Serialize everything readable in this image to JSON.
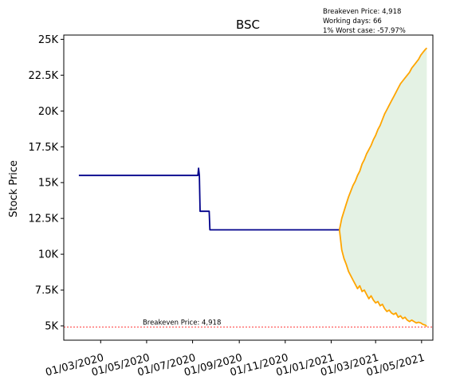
{
  "chart_data": {
    "type": "line",
    "title": "BSC",
    "ylabel": "Stock Price",
    "xlabel": "",
    "ylim": [
      4000,
      25300
    ],
    "xlim": [
      "2020-01-12",
      "2021-05-16"
    ],
    "grid": false,
    "colors": {
      "history": "#00008b",
      "forecast": "#ffa500",
      "fill": "#e4f2e4",
      "breakeven": "#ff0000"
    },
    "y_ticks": [
      {
        "value": 5000,
        "label": "5K"
      },
      {
        "value": 7500,
        "label": "7.5K"
      },
      {
        "value": 10000,
        "label": "10K"
      },
      {
        "value": 12500,
        "label": "12.5K"
      },
      {
        "value": 15000,
        "label": "15K"
      },
      {
        "value": 17500,
        "label": "17.5K"
      },
      {
        "value": 20000,
        "label": "20K"
      },
      {
        "value": 22500,
        "label": "22.5K"
      },
      {
        "value": 25000,
        "label": "25K"
      }
    ],
    "x_ticks": [
      {
        "value": "2020-03-01",
        "label": "01/03/2020"
      },
      {
        "value": "2020-05-01",
        "label": "01/05/2020"
      },
      {
        "value": "2020-07-01",
        "label": "01/07/2020"
      },
      {
        "value": "2020-09-01",
        "label": "01/09/2020"
      },
      {
        "value": "2020-11-01",
        "label": "01/11/2020"
      },
      {
        "value": "2021-01-01",
        "label": "01/01/2021"
      },
      {
        "value": "2021-03-01",
        "label": "01/03/2021"
      },
      {
        "value": "2021-05-01",
        "label": "01/05/2021"
      }
    ],
    "info_lines": [
      "Breakeven Price: 4,918",
      "Working days: 66",
      "1% Worst case: -57.97%"
    ],
    "breakeven": {
      "value": 4918,
      "label": "Breakeven Price: 4,918",
      "label_x": "2020-05-01"
    },
    "history": {
      "x": [
        "2020-02-01",
        "2020-07-08",
        "2020-07-09",
        "2020-07-10",
        "2020-07-11",
        "2020-07-23",
        "2020-07-24",
        "2020-08-13",
        "2020-12-31",
        "2021-01-12"
      ],
      "y": [
        15500,
        15500,
        16000,
        15500,
        13000,
        13000,
        11700,
        11700,
        11700,
        11700
      ]
    },
    "forecast_upper": {
      "x": [
        "2021-01-12",
        "2021-01-15",
        "2021-01-18",
        "2021-01-21",
        "2021-01-24",
        "2021-01-27",
        "2021-01-30",
        "2021-02-02",
        "2021-02-05",
        "2021-02-08",
        "2021-02-11",
        "2021-02-14",
        "2021-02-17",
        "2021-02-20",
        "2021-02-23",
        "2021-02-26",
        "2021-03-01",
        "2021-03-04",
        "2021-03-07",
        "2021-03-10",
        "2021-03-13",
        "2021-03-16",
        "2021-03-19",
        "2021-03-22",
        "2021-03-25",
        "2021-03-28",
        "2021-03-31",
        "2021-04-03",
        "2021-04-06",
        "2021-04-09",
        "2021-04-12",
        "2021-04-15",
        "2021-04-18",
        "2021-04-21",
        "2021-04-24",
        "2021-04-27",
        "2021-04-30",
        "2021-05-03",
        "2021-05-06",
        "2021-05-08"
      ],
      "y": [
        11700,
        12500,
        13000,
        13500,
        14000,
        14400,
        14800,
        15100,
        15500,
        15800,
        16300,
        16600,
        17000,
        17300,
        17600,
        18000,
        18300,
        18700,
        19000,
        19400,
        19800,
        20100,
        20400,
        20700,
        21000,
        21300,
        21600,
        21900,
        22100,
        22300,
        22500,
        22700,
        23000,
        23200,
        23400,
        23600,
        23900,
        24100,
        24300,
        24400
      ]
    },
    "forecast_lower": {
      "x": [
        "2021-01-12",
        "2021-01-15",
        "2021-01-18",
        "2021-01-21",
        "2021-01-24",
        "2021-01-27",
        "2021-01-30",
        "2021-02-02",
        "2021-02-05",
        "2021-02-08",
        "2021-02-11",
        "2021-02-14",
        "2021-02-17",
        "2021-02-20",
        "2021-02-23",
        "2021-02-26",
        "2021-03-01",
        "2021-03-04",
        "2021-03-07",
        "2021-03-10",
        "2021-03-13",
        "2021-03-16",
        "2021-03-19",
        "2021-03-22",
        "2021-03-25",
        "2021-03-28",
        "2021-03-31",
        "2021-04-03",
        "2021-04-06",
        "2021-04-09",
        "2021-04-12",
        "2021-04-15",
        "2021-04-18",
        "2021-04-21",
        "2021-04-24",
        "2021-04-27",
        "2021-04-30",
        "2021-05-03",
        "2021-05-06",
        "2021-05-08"
      ],
      "y": [
        11700,
        10300,
        9700,
        9300,
        8800,
        8500,
        8200,
        7900,
        7600,
        7800,
        7400,
        7500,
        7200,
        6900,
        7100,
        6800,
        6600,
        6700,
        6400,
        6500,
        6200,
        6000,
        6100,
        5900,
        5800,
        5900,
        5600,
        5700,
        5500,
        5600,
        5400,
        5300,
        5400,
        5300,
        5200,
        5250,
        5200,
        5100,
        5050,
        4950
      ]
    }
  }
}
